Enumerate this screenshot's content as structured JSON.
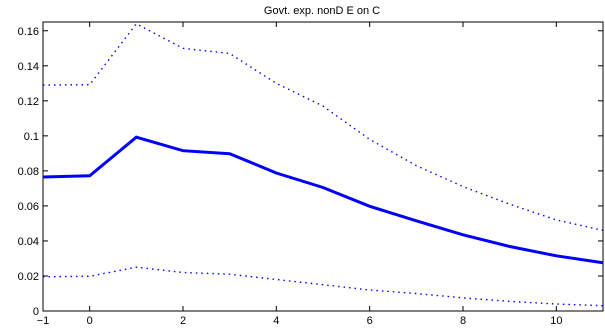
{
  "chart_data": {
    "type": "line",
    "title": "Govt. exp. nonD E on C",
    "xlabel": "",
    "ylabel": "",
    "xlim": [
      -1,
      11
    ],
    "ylim": [
      0,
      0.165
    ],
    "grid": false,
    "x": [
      -1,
      0,
      1,
      2,
      3,
      4,
      5,
      6,
      7,
      8,
      9,
      10,
      11
    ],
    "series": [
      {
        "style": "solid",
        "color": "#0000ff",
        "values": [
          0.0765,
          0.0772,
          0.0992,
          0.0915,
          0.0898,
          0.0788,
          0.0705,
          0.0598,
          0.0515,
          0.0435,
          0.0368,
          0.0315,
          0.0275
        ]
      },
      {
        "style": "dotted",
        "color": "#0000ff",
        "values": [
          0.129,
          0.1292,
          0.164,
          0.15,
          0.147,
          0.13,
          0.117,
          0.098,
          0.083,
          0.071,
          0.061,
          0.052,
          0.046
        ]
      },
      {
        "style": "dotted",
        "color": "#0000ff",
        "values": [
          0.0195,
          0.0198,
          0.025,
          0.022,
          0.021,
          0.018,
          0.015,
          0.012,
          0.01,
          0.0075,
          0.0055,
          0.004,
          0.003
        ]
      }
    ],
    "xticks": [
      "−1",
      "0",
      "2",
      "4",
      "6",
      "8",
      "10"
    ],
    "xtick_values": [
      -1,
      0,
      2,
      4,
      6,
      8,
      10
    ],
    "yticks": [
      "0",
      "0.02",
      "0.04",
      "0.06",
      "0.08",
      "0.1",
      "0.12",
      "0.14",
      "0.16"
    ],
    "ytick_values": [
      0,
      0.02,
      0.04,
      0.06,
      0.08,
      0.1,
      0.12,
      0.14,
      0.16
    ]
  }
}
